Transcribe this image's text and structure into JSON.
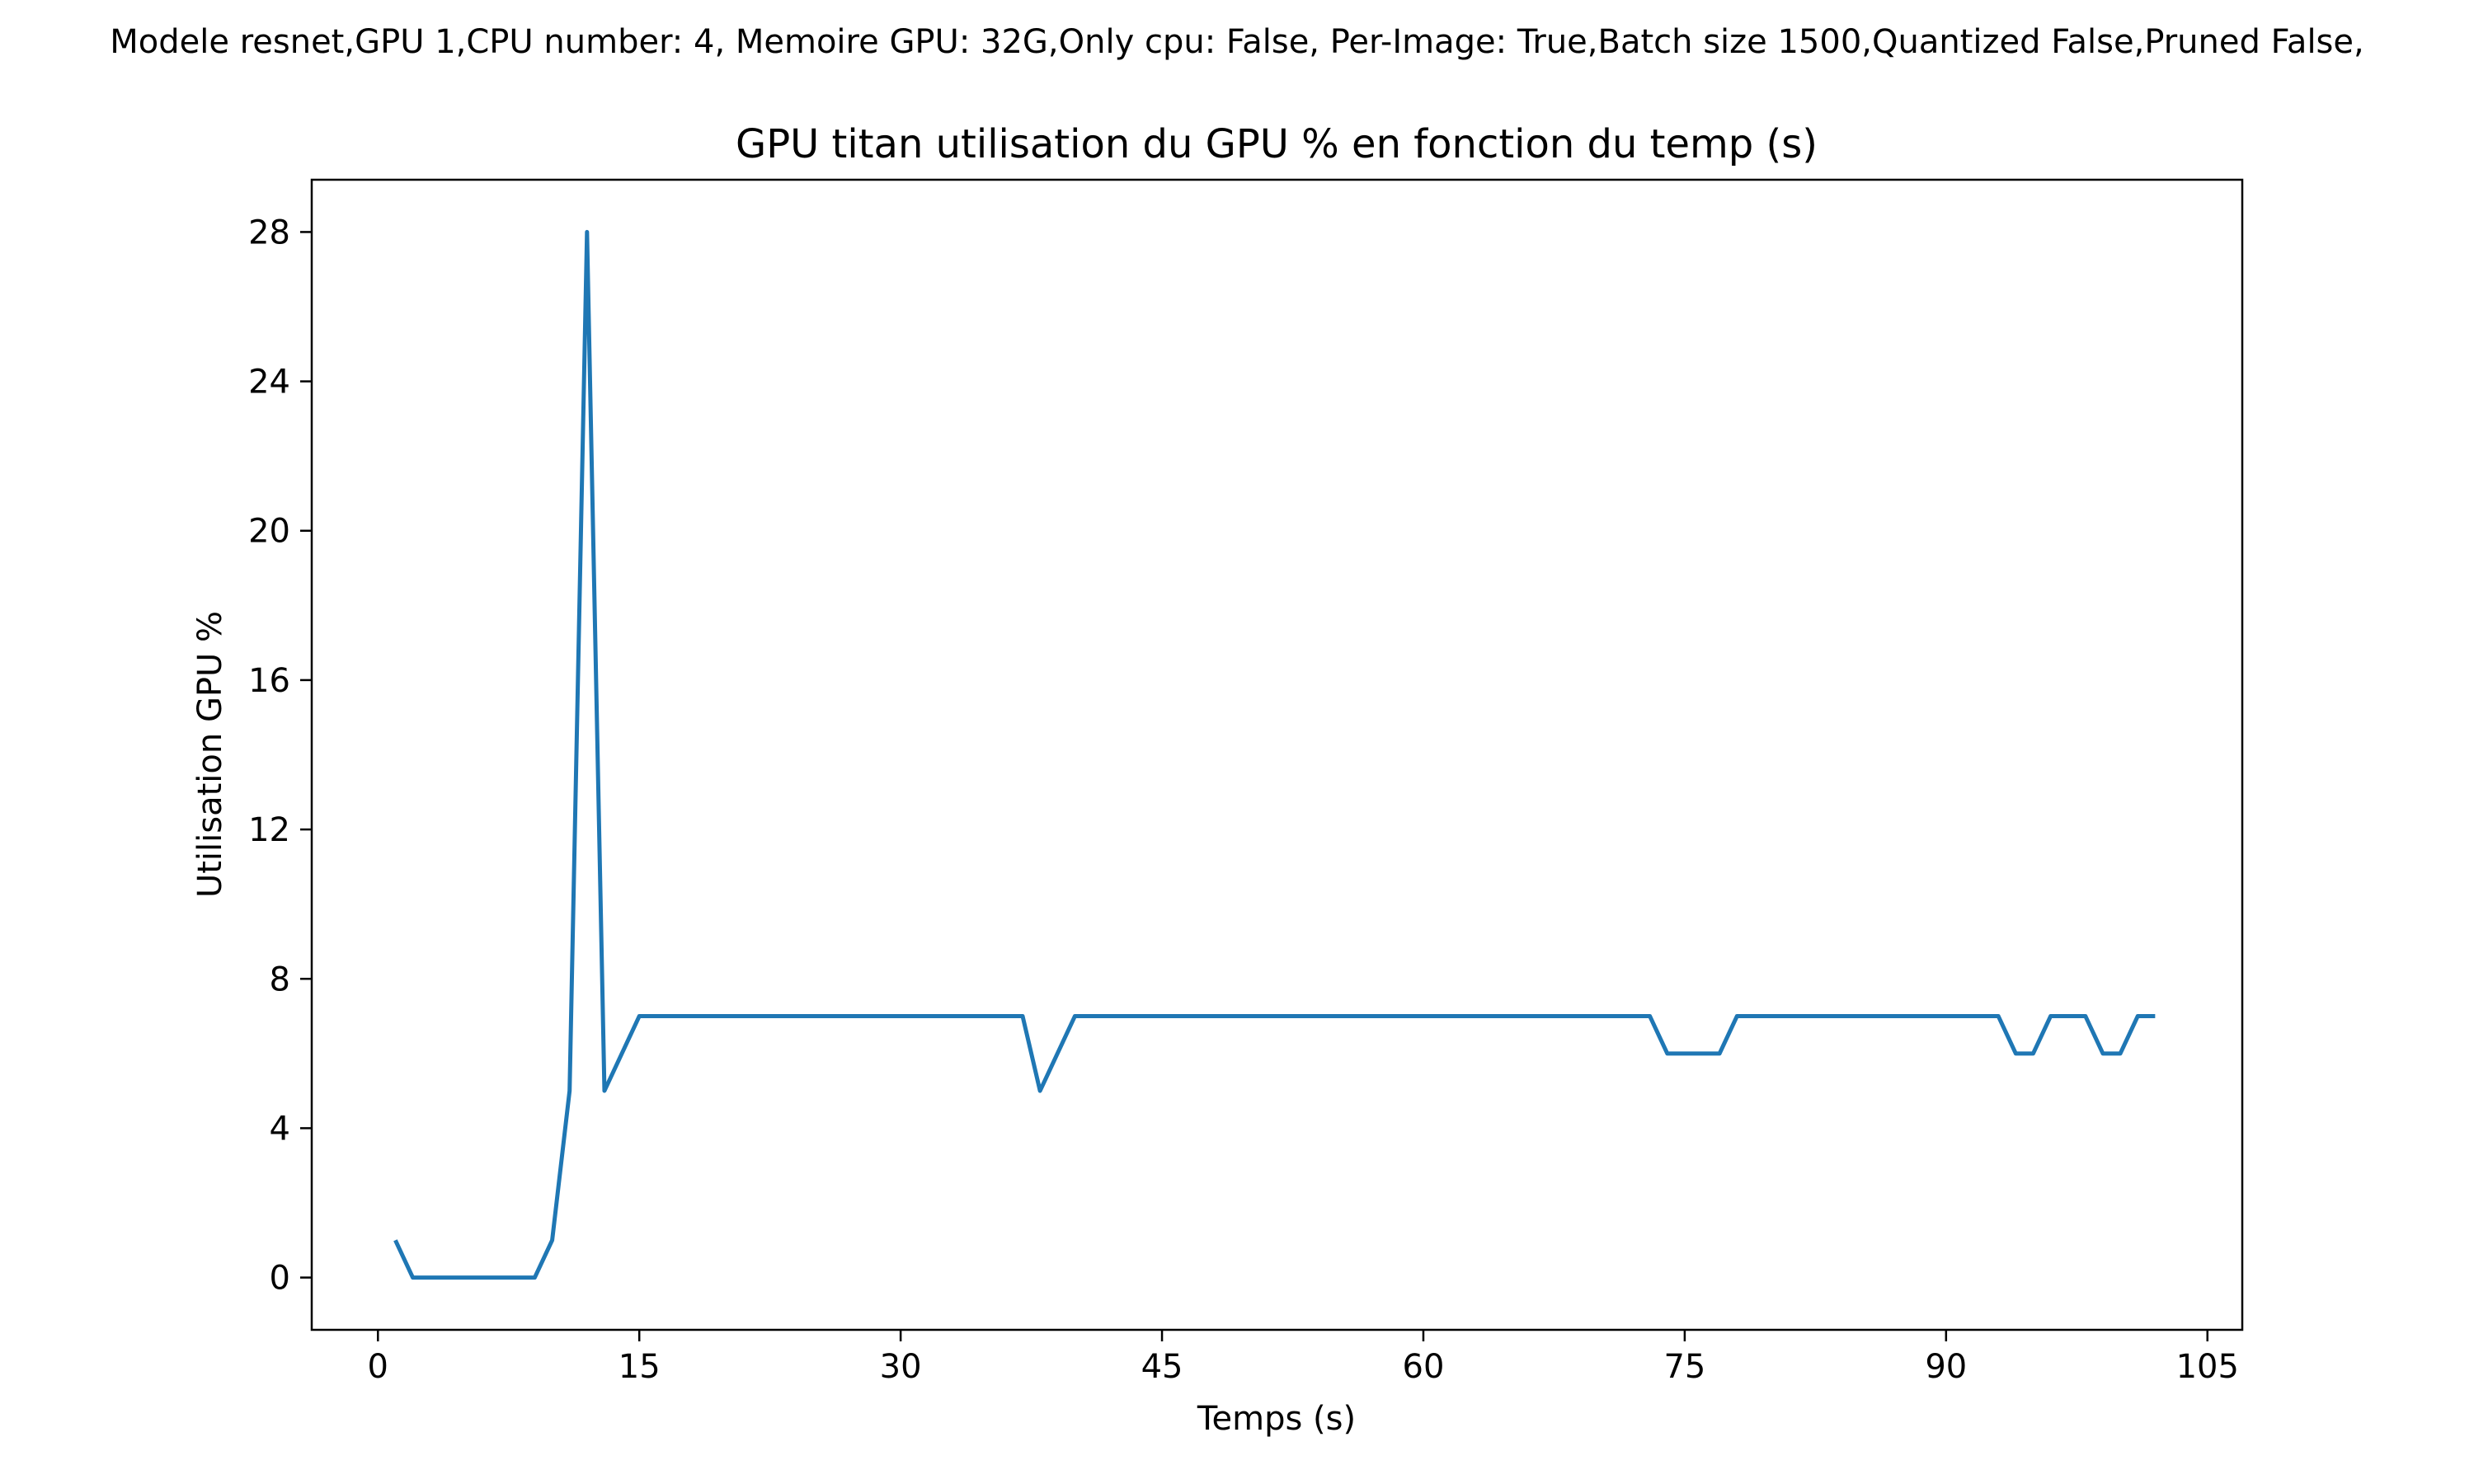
{
  "suptitle": "Modele resnet,GPU 1,CPU number: 4, Memoire GPU: 32G,Only cpu: False, Per-Image: True,Batch size 1500,Quantized False,Pruned False,",
  "chart_data": {
    "type": "line",
    "title": "GPU titan utilisation du GPU % en fonction du temp (s)",
    "xlabel": "Temps (s)",
    "ylabel": "Utilisation GPU %",
    "xlim": [
      -3.8,
      107.0
    ],
    "ylim": [
      -1.4,
      29.4
    ],
    "xticks": [
      0,
      15,
      30,
      45,
      60,
      75,
      90,
      105
    ],
    "yticks": [
      0,
      4,
      8,
      12,
      16,
      20,
      24,
      28
    ],
    "grid": false,
    "color": "#1f77b4",
    "series": [
      {
        "x": [
          1,
          2,
          3,
          4,
          5,
          6,
          7,
          8,
          9,
          10,
          11,
          12,
          13,
          14,
          15,
          16,
          17,
          18,
          19,
          20,
          21,
          22,
          23,
          24,
          25,
          26,
          27,
          28,
          29,
          30,
          31,
          32,
          33,
          34,
          35,
          36,
          37,
          38,
          39,
          40,
          41,
          42,
          43,
          44,
          45,
          46,
          47,
          48,
          49,
          50,
          51,
          52,
          53,
          54,
          55,
          56,
          57,
          58,
          59,
          60,
          61,
          62,
          63,
          64,
          65,
          66,
          67,
          68,
          69,
          70,
          71,
          72,
          73,
          74,
          75,
          76,
          77,
          78,
          79,
          80,
          81,
          82,
          83,
          84,
          85,
          86,
          87,
          88,
          89,
          90,
          91,
          92,
          93,
          94,
          95,
          96,
          97,
          98,
          99,
          100,
          101,
          102
        ],
        "y": [
          1,
          0,
          0,
          0,
          0,
          0,
          0,
          0,
          0,
          1,
          5,
          28,
          5,
          6,
          7,
          7,
          7,
          7,
          7,
          7,
          7,
          7,
          7,
          7,
          7,
          7,
          7,
          7,
          7,
          7,
          7,
          7,
          7,
          7,
          7,
          7,
          7,
          5,
          6,
          7,
          7,
          7,
          7,
          7,
          7,
          7,
          7,
          7,
          7,
          7,
          7,
          7,
          7,
          7,
          7,
          7,
          7,
          7,
          7,
          7,
          7,
          7,
          7,
          7,
          7,
          7,
          7,
          7,
          7,
          7,
          7,
          7,
          7,
          6,
          6,
          6,
          6,
          7,
          7,
          7,
          7,
          7,
          7,
          7,
          7,
          7,
          7,
          7,
          7,
          7,
          7,
          7,
          7,
          6,
          6,
          7,
          7,
          7,
          6,
          6,
          7,
          7
        ]
      }
    ]
  }
}
